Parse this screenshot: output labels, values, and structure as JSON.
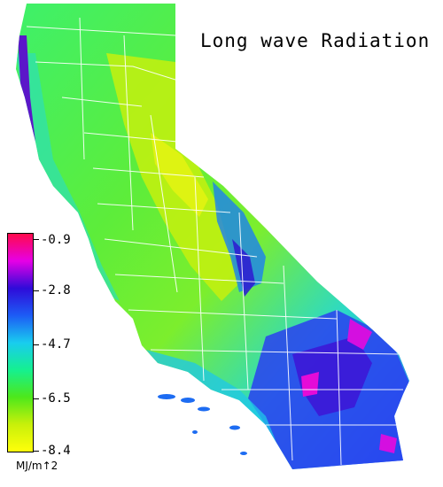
{
  "title": "Long wave Radiation",
  "legend": {
    "ticks": [
      "-0.9",
      "-2.8",
      "-4.7",
      "-6.5",
      "-8.4"
    ],
    "units": "MJ/m↑2",
    "colors": [
      "#ff0a4b",
      "#e600e6",
      "#2f0bd9",
      "#1d5cf5",
      "#19ccef",
      "#15f090",
      "#4de81b",
      "#c8f00a",
      "#ffff0a"
    ]
  },
  "palette": {
    "background": "#ffffff",
    "county_lines": "#ffffff",
    "dominant_fill": "#57e85a"
  }
}
